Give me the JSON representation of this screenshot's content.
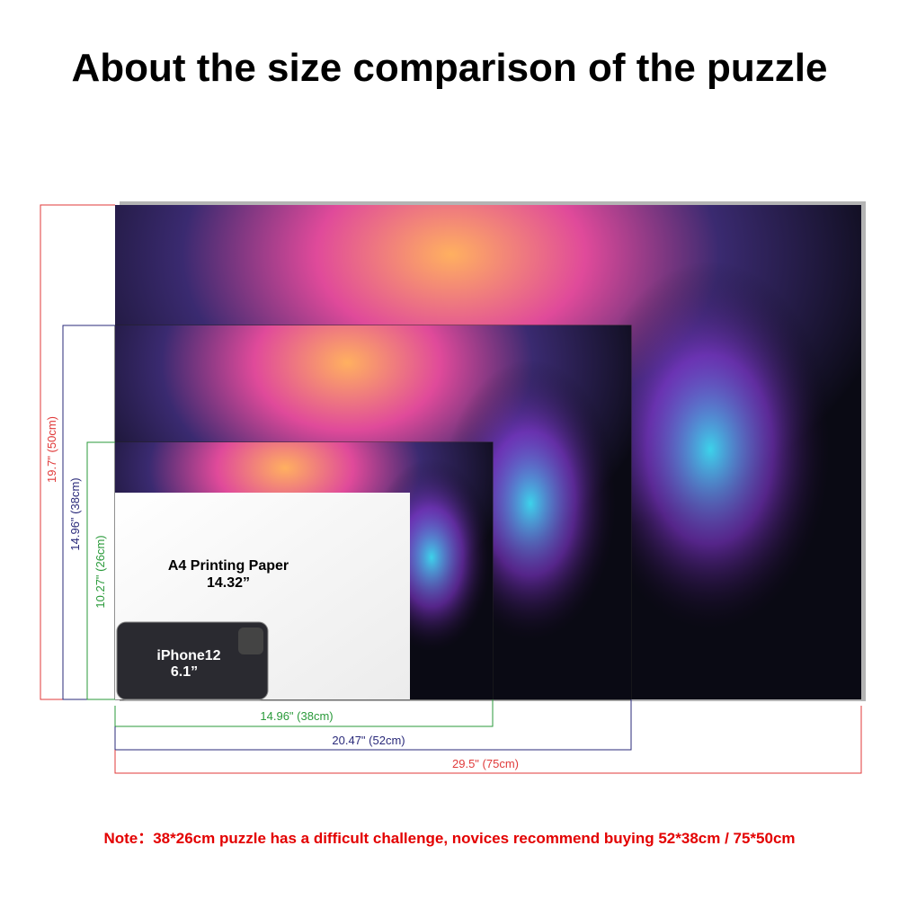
{
  "header": {
    "title": "About the size comparison of the puzzle"
  },
  "dimensions": {
    "vertical": [
      "19.7\" (50cm)",
      "14.96\" (38cm)",
      "10.27\" (26cm)"
    ],
    "horizontal": [
      "14.96\" (38cm)",
      "20.47\" (52cm)",
      "29.5\" (75cm)"
    ]
  },
  "paper": {
    "label": "A4 Printing Paper",
    "size": "14.32”"
  },
  "phone": {
    "label": "iPhone12",
    "size": "6.1”"
  },
  "note": "Note：38*26cm puzzle has a difficult challenge, novices recommend buying 52*38cm / 75*50cm"
}
